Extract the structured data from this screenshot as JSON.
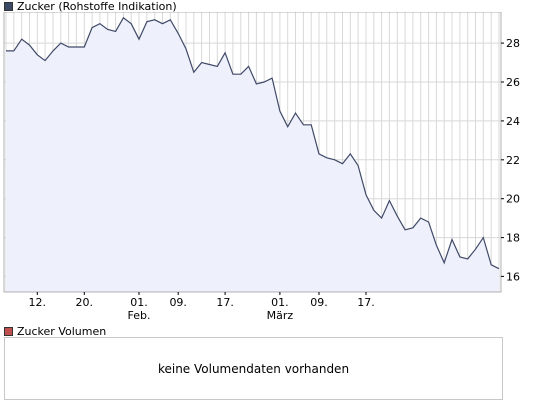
{
  "chart_data": {
    "type": "area",
    "legend_label": "Zucker (Rohstoffe Indikation)",
    "colors": {
      "line": "#404a68",
      "fill": "#eef1fb",
      "grid": "#d8d8d8",
      "price_swatch": "#3a4a66",
      "volume_swatch": "#c0504d"
    },
    "y_ticks": [
      16,
      18,
      20,
      22,
      24,
      26,
      28
    ],
    "ylim": [
      15.2,
      29.6
    ],
    "grid": true,
    "x_tick_labels": [
      {
        "label": "12.",
        "index": 4
      },
      {
        "label": "20.",
        "index": 10
      },
      {
        "label": "01.",
        "sublabel": "Feb.",
        "index": 17
      },
      {
        "label": "09.",
        "index": 22
      },
      {
        "label": "17.",
        "index": 28
      },
      {
        "label": "01.",
        "sublabel": "März",
        "index": 35
      },
      {
        "label": "09.",
        "index": 40
      },
      {
        "label": "17.",
        "index": 46
      }
    ],
    "values": [
      27.6,
      27.6,
      28.2,
      27.9,
      27.4,
      27.1,
      27.6,
      28.0,
      27.8,
      27.8,
      27.8,
      28.8,
      29.0,
      28.7,
      28.6,
      29.3,
      29.0,
      28.2,
      29.1,
      29.2,
      29.0,
      29.2,
      28.5,
      27.7,
      26.5,
      27.0,
      26.9,
      26.8,
      27.5,
      26.4,
      26.4,
      26.8,
      25.9,
      26.0,
      26.2,
      24.5,
      23.7,
      24.4,
      23.8,
      23.8,
      22.3,
      22.1,
      22.0,
      21.8,
      22.3,
      21.7,
      20.2,
      19.4,
      19.0,
      19.9,
      19.1,
      18.4,
      18.5,
      19.0,
      18.8,
      17.6,
      16.7,
      17.9,
      17.0,
      16.9,
      17.4,
      18.0,
      16.6,
      16.4
    ]
  },
  "volume": {
    "legend_label": "Zucker Volumen",
    "message": "keine Volumendaten vorhanden"
  }
}
